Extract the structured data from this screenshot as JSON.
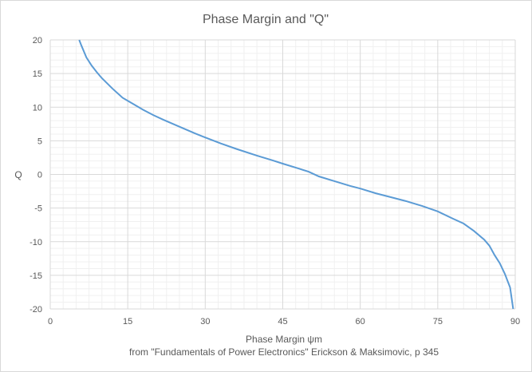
{
  "chart_data": {
    "type": "line",
    "title": "Phase Margin and \"Q\"",
    "xlabel": "Phase Margin ψm",
    "ylabel": "Q",
    "caption": "from \"Fundamentals of Power Electronics\" Erickson & Maksimovic, p 345",
    "xlim": [
      0,
      90
    ],
    "ylim": [
      -20,
      20
    ],
    "xticks": [
      0,
      15,
      30,
      45,
      60,
      75,
      90
    ],
    "yticks": [
      20,
      15,
      10,
      5,
      0,
      -5,
      -10,
      -15,
      -20
    ],
    "grid": true,
    "legend": "none",
    "line_color": "#5b9bd5",
    "series": [
      {
        "x": [
          5.6,
          6,
          7,
          8,
          9,
          10,
          12,
          14,
          16,
          18,
          20,
          22,
          25,
          28,
          30,
          33,
          36,
          40,
          43,
          45,
          48,
          50,
          52,
          55,
          58,
          60,
          63,
          66,
          69,
          72,
          75,
          78,
          80,
          82,
          84,
          85,
          86,
          87,
          88,
          89,
          89.6
        ],
        "y": [
          20,
          19.2,
          17.4,
          16.2,
          15.2,
          14.3,
          12.8,
          11.4,
          10.5,
          9.6,
          8.8,
          8.1,
          7.1,
          6.1,
          5.5,
          4.6,
          3.8,
          2.8,
          2.1,
          1.6,
          0.9,
          0.4,
          -0.3,
          -1.0,
          -1.7,
          -2.1,
          -2.8,
          -3.4,
          -4.0,
          -4.7,
          -5.5,
          -6.6,
          -7.3,
          -8.4,
          -9.7,
          -10.6,
          -12.0,
          -13.2,
          -14.8,
          -16.8,
          -20
        ]
      }
    ]
  }
}
